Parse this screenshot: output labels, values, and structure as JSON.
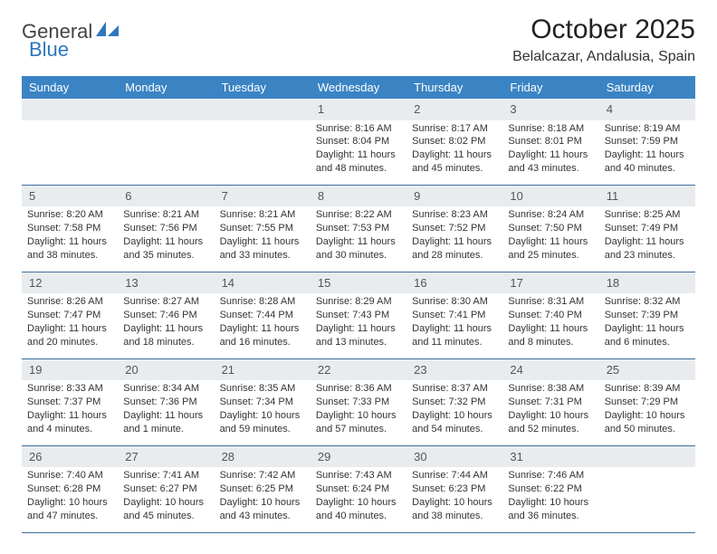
{
  "brand": {
    "part1": "General",
    "part2": "Blue"
  },
  "colors": {
    "header_bg": "#3b84c4",
    "header_text": "#ffffff",
    "daynum_bg": "#e8ecef",
    "week_border": "#3b6fa0",
    "brand_blue": "#2e77bd",
    "text": "#333333"
  },
  "title": "October 2025",
  "location": "Belalcazar, Andalusia, Spain",
  "weekdays": [
    "Sunday",
    "Monday",
    "Tuesday",
    "Wednesday",
    "Thursday",
    "Friday",
    "Saturday"
  ],
  "weeks": [
    [
      null,
      null,
      null,
      {
        "n": "1",
        "sunrise": "8:16 AM",
        "sunset": "8:04 PM",
        "daylight": "11 hours and 48 minutes."
      },
      {
        "n": "2",
        "sunrise": "8:17 AM",
        "sunset": "8:02 PM",
        "daylight": "11 hours and 45 minutes."
      },
      {
        "n": "3",
        "sunrise": "8:18 AM",
        "sunset": "8:01 PM",
        "daylight": "11 hours and 43 minutes."
      },
      {
        "n": "4",
        "sunrise": "8:19 AM",
        "sunset": "7:59 PM",
        "daylight": "11 hours and 40 minutes."
      }
    ],
    [
      {
        "n": "5",
        "sunrise": "8:20 AM",
        "sunset": "7:58 PM",
        "daylight": "11 hours and 38 minutes."
      },
      {
        "n": "6",
        "sunrise": "8:21 AM",
        "sunset": "7:56 PM",
        "daylight": "11 hours and 35 minutes."
      },
      {
        "n": "7",
        "sunrise": "8:21 AM",
        "sunset": "7:55 PM",
        "daylight": "11 hours and 33 minutes."
      },
      {
        "n": "8",
        "sunrise": "8:22 AM",
        "sunset": "7:53 PM",
        "daylight": "11 hours and 30 minutes."
      },
      {
        "n": "9",
        "sunrise": "8:23 AM",
        "sunset": "7:52 PM",
        "daylight": "11 hours and 28 minutes."
      },
      {
        "n": "10",
        "sunrise": "8:24 AM",
        "sunset": "7:50 PM",
        "daylight": "11 hours and 25 minutes."
      },
      {
        "n": "11",
        "sunrise": "8:25 AM",
        "sunset": "7:49 PM",
        "daylight": "11 hours and 23 minutes."
      }
    ],
    [
      {
        "n": "12",
        "sunrise": "8:26 AM",
        "sunset": "7:47 PM",
        "daylight": "11 hours and 20 minutes."
      },
      {
        "n": "13",
        "sunrise": "8:27 AM",
        "sunset": "7:46 PM",
        "daylight": "11 hours and 18 minutes."
      },
      {
        "n": "14",
        "sunrise": "8:28 AM",
        "sunset": "7:44 PM",
        "daylight": "11 hours and 16 minutes."
      },
      {
        "n": "15",
        "sunrise": "8:29 AM",
        "sunset": "7:43 PM",
        "daylight": "11 hours and 13 minutes."
      },
      {
        "n": "16",
        "sunrise": "8:30 AM",
        "sunset": "7:41 PM",
        "daylight": "11 hours and 11 minutes."
      },
      {
        "n": "17",
        "sunrise": "8:31 AM",
        "sunset": "7:40 PM",
        "daylight": "11 hours and 8 minutes."
      },
      {
        "n": "18",
        "sunrise": "8:32 AM",
        "sunset": "7:39 PM",
        "daylight": "11 hours and 6 minutes."
      }
    ],
    [
      {
        "n": "19",
        "sunrise": "8:33 AM",
        "sunset": "7:37 PM",
        "daylight": "11 hours and 4 minutes."
      },
      {
        "n": "20",
        "sunrise": "8:34 AM",
        "sunset": "7:36 PM",
        "daylight": "11 hours and 1 minute."
      },
      {
        "n": "21",
        "sunrise": "8:35 AM",
        "sunset": "7:34 PM",
        "daylight": "10 hours and 59 minutes."
      },
      {
        "n": "22",
        "sunrise": "8:36 AM",
        "sunset": "7:33 PM",
        "daylight": "10 hours and 57 minutes."
      },
      {
        "n": "23",
        "sunrise": "8:37 AM",
        "sunset": "7:32 PM",
        "daylight": "10 hours and 54 minutes."
      },
      {
        "n": "24",
        "sunrise": "8:38 AM",
        "sunset": "7:31 PM",
        "daylight": "10 hours and 52 minutes."
      },
      {
        "n": "25",
        "sunrise": "8:39 AM",
        "sunset": "7:29 PM",
        "daylight": "10 hours and 50 minutes."
      }
    ],
    [
      {
        "n": "26",
        "sunrise": "7:40 AM",
        "sunset": "6:28 PM",
        "daylight": "10 hours and 47 minutes."
      },
      {
        "n": "27",
        "sunrise": "7:41 AM",
        "sunset": "6:27 PM",
        "daylight": "10 hours and 45 minutes."
      },
      {
        "n": "28",
        "sunrise": "7:42 AM",
        "sunset": "6:25 PM",
        "daylight": "10 hours and 43 minutes."
      },
      {
        "n": "29",
        "sunrise": "7:43 AM",
        "sunset": "6:24 PM",
        "daylight": "10 hours and 40 minutes."
      },
      {
        "n": "30",
        "sunrise": "7:44 AM",
        "sunset": "6:23 PM",
        "daylight": "10 hours and 38 minutes."
      },
      {
        "n": "31",
        "sunrise": "7:46 AM",
        "sunset": "6:22 PM",
        "daylight": "10 hours and 36 minutes."
      },
      null
    ]
  ]
}
